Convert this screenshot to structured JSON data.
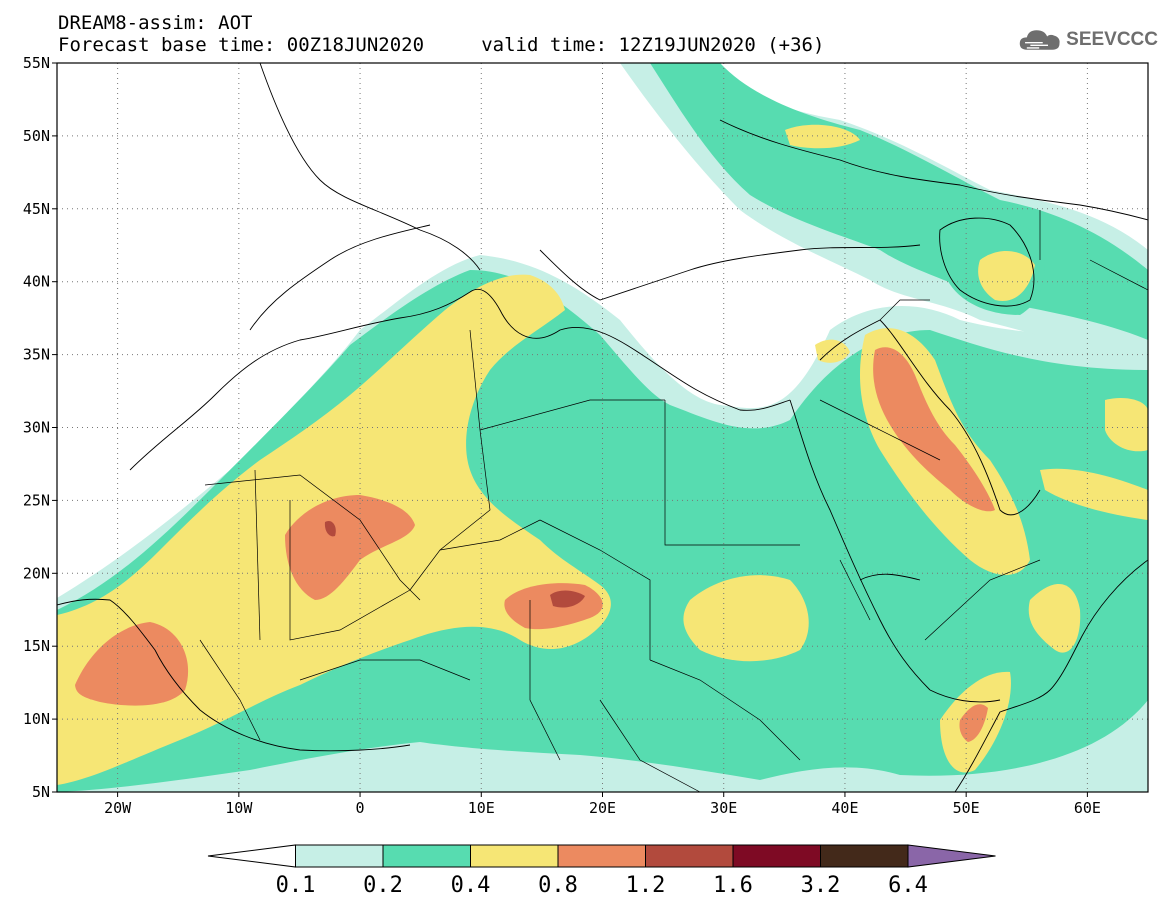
{
  "title_line1": "DREAM8-assim: AOT",
  "title_line2": "Forecast base time: 00Z18JUN2020     valid time: 12Z19JUN2020 (+36)",
  "logo": {
    "text": "SEEVCCC",
    "icon": "cloud-icon"
  },
  "map": {
    "lon_range": [
      -25,
      65
    ],
    "lat_range": [
      5,
      55
    ],
    "lat_ticks": [
      {
        "value": 55,
        "label": "55N"
      },
      {
        "value": 50,
        "label": "50N"
      },
      {
        "value": 45,
        "label": "45N"
      },
      {
        "value": 40,
        "label": "40N"
      },
      {
        "value": 35,
        "label": "35N"
      },
      {
        "value": 30,
        "label": "30N"
      },
      {
        "value": 25,
        "label": "25N"
      },
      {
        "value": 20,
        "label": "20N"
      },
      {
        "value": 15,
        "label": "15N"
      },
      {
        "value": 10,
        "label": "10N"
      },
      {
        "value": 5,
        "label": "5N"
      }
    ],
    "lon_ticks": [
      {
        "value": -20,
        "label": "20W"
      },
      {
        "value": -10,
        "label": "10W"
      },
      {
        "value": 0,
        "label": "0"
      },
      {
        "value": 10,
        "label": "10E"
      },
      {
        "value": 20,
        "label": "20E"
      },
      {
        "value": 30,
        "label": "30E"
      },
      {
        "value": 40,
        "label": "40E"
      },
      {
        "value": 50,
        "label": "50E"
      },
      {
        "value": 60,
        "label": "60E"
      }
    ],
    "grid": "dotted"
  },
  "colorbar": {
    "labels": [
      "0.1",
      "0.2",
      "0.4",
      "0.8",
      "1.2",
      "1.6",
      "3.2",
      "6.4"
    ],
    "colors": [
      "#ffffff",
      "#c6efe6",
      "#57dcb0",
      "#f6e675",
      "#ec8a60",
      "#b24a3d",
      "#7e0a24",
      "#43291a",
      "#8a66a8"
    ]
  }
}
